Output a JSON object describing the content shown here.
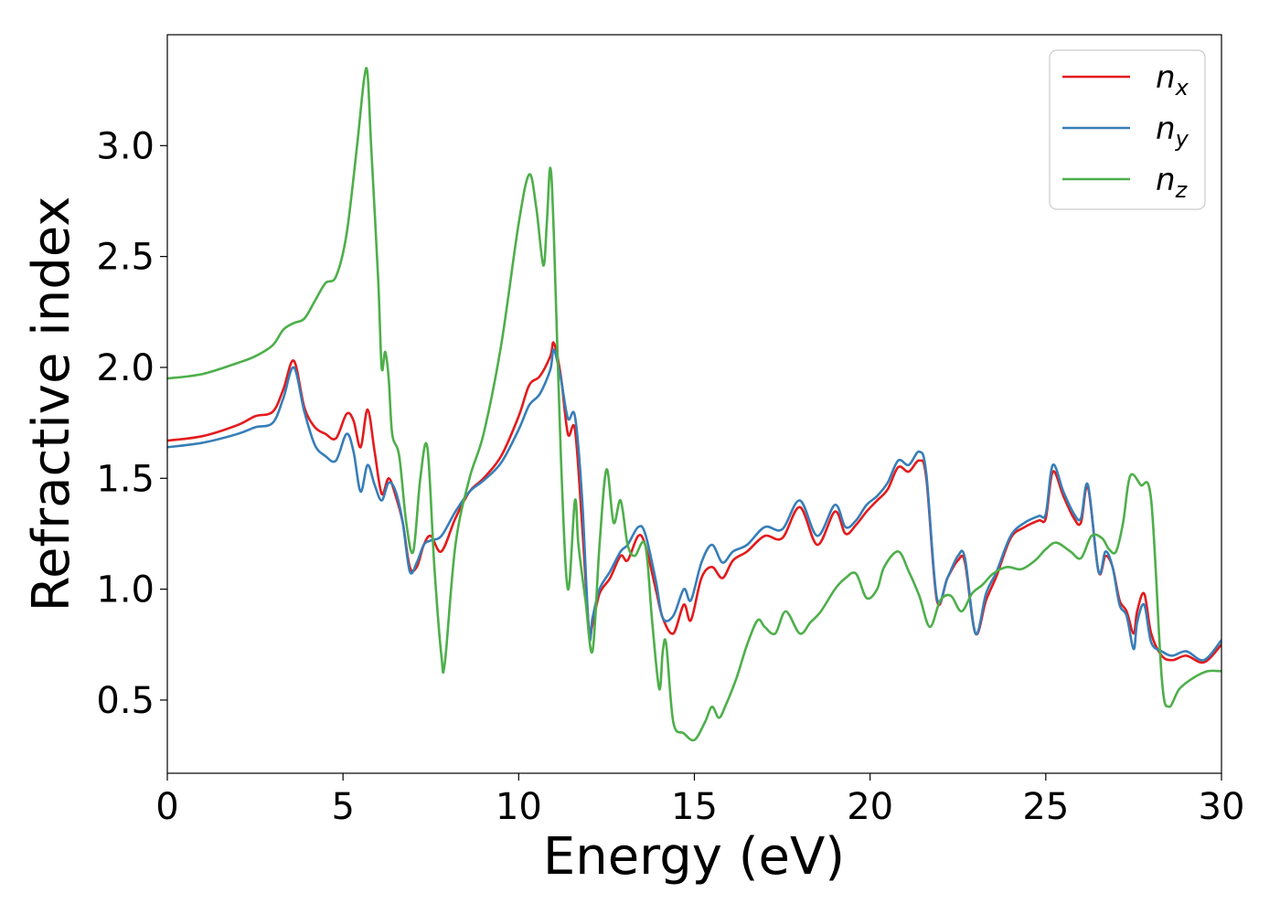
{
  "chart_data": {
    "type": "line",
    "xlabel": "Energy (eV)",
    "ylabel": "Refractive index",
    "xlim": [
      0,
      30
    ],
    "ylim": [
      0.17,
      3.5
    ],
    "xticks": [
      0,
      5,
      10,
      15,
      20,
      25,
      30
    ],
    "xtick_labels": [
      "0",
      "5",
      "10",
      "15",
      "20",
      "25",
      "30"
    ],
    "yticks": [
      0.5,
      1.0,
      1.5,
      2.0,
      2.5,
      3.0
    ],
    "ytick_labels": [
      "0.5",
      "1.0",
      "1.5",
      "2.0",
      "2.5",
      "3.0"
    ],
    "grid": false,
    "legend_position": "top-right",
    "series": [
      {
        "name": "n_x",
        "label_main": "n",
        "label_sub": "x",
        "color": "#e41a1c",
        "x": [
          0,
          1,
          2,
          2.5,
          3,
          3.3,
          3.6,
          3.9,
          4.2,
          4.5,
          4.8,
          5.1,
          5.3,
          5.5,
          5.7,
          5.9,
          6.1,
          6.3,
          6.5,
          6.7,
          6.9,
          7.1,
          7.3,
          7.5,
          7.8,
          8.2,
          8.6,
          9.0,
          9.5,
          10.0,
          10.3,
          10.6,
          10.9,
          11.0,
          11.2,
          11.4,
          11.6,
          11.8,
          12.0,
          12.1,
          12.3,
          12.6,
          12.9,
          13.1,
          13.4,
          13.6,
          13.9,
          14.1,
          14.4,
          14.7,
          14.9,
          15.2,
          15.5,
          15.8,
          16.1,
          16.5,
          17.0,
          17.5,
          18.0,
          18.5,
          19.0,
          19.3,
          19.6,
          19.9,
          20.2,
          20.5,
          20.8,
          21.1,
          21.4,
          21.6,
          21.9,
          22.2,
          22.5,
          22.7,
          23.0,
          23.3,
          23.6,
          24.0,
          24.4,
          24.8,
          25.0,
          25.2,
          25.5,
          25.8,
          26.0,
          26.2,
          26.5,
          26.7,
          26.9,
          27.1,
          27.3,
          27.5,
          27.6,
          27.8,
          28.0,
          28.3,
          28.6,
          29.0,
          29.5,
          30.0
        ],
        "y": [
          1.67,
          1.69,
          1.74,
          1.78,
          1.8,
          1.9,
          2.03,
          1.82,
          1.73,
          1.7,
          1.68,
          1.79,
          1.76,
          1.64,
          1.81,
          1.62,
          1.43,
          1.5,
          1.42,
          1.3,
          1.1,
          1.1,
          1.2,
          1.24,
          1.17,
          1.32,
          1.44,
          1.5,
          1.6,
          1.78,
          1.92,
          1.96,
          2.05,
          2.11,
          1.96,
          1.7,
          1.72,
          1.3,
          0.82,
          0.84,
          0.98,
          1.05,
          1.15,
          1.13,
          1.24,
          1.2,
          1.0,
          0.87,
          0.8,
          0.93,
          0.86,
          1.05,
          1.1,
          1.05,
          1.13,
          1.17,
          1.24,
          1.23,
          1.37,
          1.2,
          1.35,
          1.25,
          1.29,
          1.35,
          1.4,
          1.45,
          1.55,
          1.53,
          1.58,
          1.5,
          0.95,
          1.05,
          1.13,
          1.12,
          0.8,
          0.95,
          1.06,
          1.23,
          1.28,
          1.31,
          1.32,
          1.53,
          1.42,
          1.32,
          1.3,
          1.46,
          1.08,
          1.15,
          1.1,
          0.95,
          0.9,
          0.8,
          0.9,
          0.98,
          0.8,
          0.7,
          0.68,
          0.7,
          0.67,
          0.75
        ]
      },
      {
        "name": "n_y",
        "label_main": "n",
        "label_sub": "y",
        "color": "#377eb8",
        "x": [
          0,
          1,
          2,
          2.5,
          3,
          3.3,
          3.6,
          3.9,
          4.2,
          4.5,
          4.8,
          5.1,
          5.3,
          5.5,
          5.7,
          5.9,
          6.1,
          6.3,
          6.5,
          6.7,
          6.9,
          7.1,
          7.3,
          7.5,
          7.8,
          8.2,
          8.6,
          9.0,
          9.5,
          10.0,
          10.3,
          10.6,
          10.9,
          11.0,
          11.2,
          11.4,
          11.6,
          11.8,
          12.0,
          12.1,
          12.3,
          12.6,
          12.9,
          13.1,
          13.4,
          13.6,
          13.9,
          14.1,
          14.4,
          14.7,
          14.9,
          15.2,
          15.5,
          15.8,
          16.1,
          16.5,
          17.0,
          17.5,
          18.0,
          18.5,
          19.0,
          19.3,
          19.6,
          19.9,
          20.2,
          20.5,
          20.8,
          21.1,
          21.4,
          21.6,
          21.9,
          22.2,
          22.5,
          22.7,
          23.0,
          23.3,
          23.6,
          24.0,
          24.4,
          24.8,
          25.0,
          25.2,
          25.5,
          25.8,
          26.0,
          26.2,
          26.5,
          26.7,
          26.9,
          27.1,
          27.3,
          27.5,
          27.6,
          27.8,
          28.0,
          28.3,
          28.6,
          29.0,
          29.5,
          30.0
        ],
        "y": [
          1.64,
          1.66,
          1.7,
          1.73,
          1.75,
          1.86,
          2.0,
          1.8,
          1.65,
          1.6,
          1.58,
          1.7,
          1.62,
          1.44,
          1.56,
          1.47,
          1.4,
          1.48,
          1.44,
          1.3,
          1.08,
          1.12,
          1.2,
          1.22,
          1.24,
          1.35,
          1.44,
          1.49,
          1.57,
          1.72,
          1.83,
          1.88,
          1.99,
          2.08,
          1.95,
          1.77,
          1.78,
          1.42,
          0.8,
          0.87,
          1.0,
          1.08,
          1.17,
          1.2,
          1.28,
          1.25,
          1.04,
          0.87,
          0.88,
          1.0,
          0.95,
          1.12,
          1.2,
          1.12,
          1.17,
          1.2,
          1.28,
          1.27,
          1.4,
          1.24,
          1.38,
          1.28,
          1.31,
          1.38,
          1.42,
          1.48,
          1.58,
          1.56,
          1.62,
          1.52,
          0.96,
          1.05,
          1.15,
          1.14,
          0.8,
          0.98,
          1.08,
          1.24,
          1.3,
          1.33,
          1.34,
          1.56,
          1.44,
          1.34,
          1.32,
          1.47,
          1.08,
          1.17,
          1.1,
          0.93,
          0.88,
          0.73,
          0.85,
          0.93,
          0.76,
          0.72,
          0.7,
          0.72,
          0.68,
          0.77
        ]
      },
      {
        "name": "n_z",
        "label_main": "n",
        "label_sub": "z",
        "color": "#4daf4a",
        "x": [
          0,
          1,
          2,
          2.5,
          3,
          3.3,
          3.6,
          3.9,
          4.2,
          4.5,
          4.8,
          5.1,
          5.4,
          5.6,
          5.7,
          5.8,
          6.0,
          6.1,
          6.2,
          6.3,
          6.4,
          6.6,
          6.8,
          7.0,
          7.2,
          7.4,
          7.6,
          7.8,
          7.9,
          8.2,
          8.6,
          9.0,
          9.5,
          10.0,
          10.3,
          10.5,
          10.7,
          10.8,
          10.9,
          11.0,
          11.2,
          11.4,
          11.6,
          11.7,
          11.9,
          12.1,
          12.3,
          12.5,
          12.7,
          12.9,
          13.1,
          13.3,
          13.6,
          13.8,
          14.0,
          14.1,
          14.2,
          14.4,
          14.7,
          15.0,
          15.3,
          15.5,
          15.7,
          15.9,
          16.2,
          16.5,
          16.8,
          17.0,
          17.3,
          17.6,
          18.0,
          18.3,
          18.6,
          19.0,
          19.3,
          19.6,
          19.9,
          20.2,
          20.4,
          20.8,
          21.1,
          21.4,
          21.7,
          22.0,
          22.3,
          22.6,
          22.9,
          23.2,
          23.5,
          23.9,
          24.3,
          24.7,
          25.0,
          25.3,
          25.7,
          26.0,
          26.3,
          26.6,
          26.8,
          27.0,
          27.2,
          27.4,
          27.7,
          28.0,
          28.3,
          28.5,
          28.8,
          29.2,
          29.6,
          30.0
        ],
        "y": [
          1.95,
          1.97,
          2.02,
          2.05,
          2.1,
          2.17,
          2.2,
          2.22,
          2.3,
          2.38,
          2.41,
          2.6,
          3.0,
          3.3,
          3.32,
          3.0,
          2.4,
          2.0,
          2.07,
          1.95,
          1.7,
          1.6,
          1.3,
          1.17,
          1.5,
          1.64,
          1.1,
          0.7,
          0.67,
          1.2,
          1.5,
          1.7,
          2.1,
          2.65,
          2.87,
          2.72,
          2.46,
          2.65,
          2.9,
          2.6,
          1.6,
          1.0,
          1.4,
          1.2,
          0.95,
          0.72,
          1.2,
          1.54,
          1.3,
          1.4,
          1.2,
          1.15,
          1.2,
          0.85,
          0.55,
          0.72,
          0.75,
          0.4,
          0.35,
          0.32,
          0.4,
          0.47,
          0.42,
          0.48,
          0.6,
          0.75,
          0.86,
          0.83,
          0.8,
          0.9,
          0.8,
          0.85,
          0.9,
          1.0,
          1.05,
          1.07,
          0.96,
          1.0,
          1.1,
          1.17,
          1.08,
          0.97,
          0.83,
          0.95,
          0.97,
          0.9,
          0.98,
          1.02,
          1.07,
          1.1,
          1.09,
          1.13,
          1.18,
          1.21,
          1.17,
          1.14,
          1.24,
          1.23,
          1.18,
          1.17,
          1.3,
          1.51,
          1.47,
          1.4,
          0.6,
          0.47,
          0.55,
          0.6,
          0.63,
          0.63
        ]
      }
    ]
  }
}
